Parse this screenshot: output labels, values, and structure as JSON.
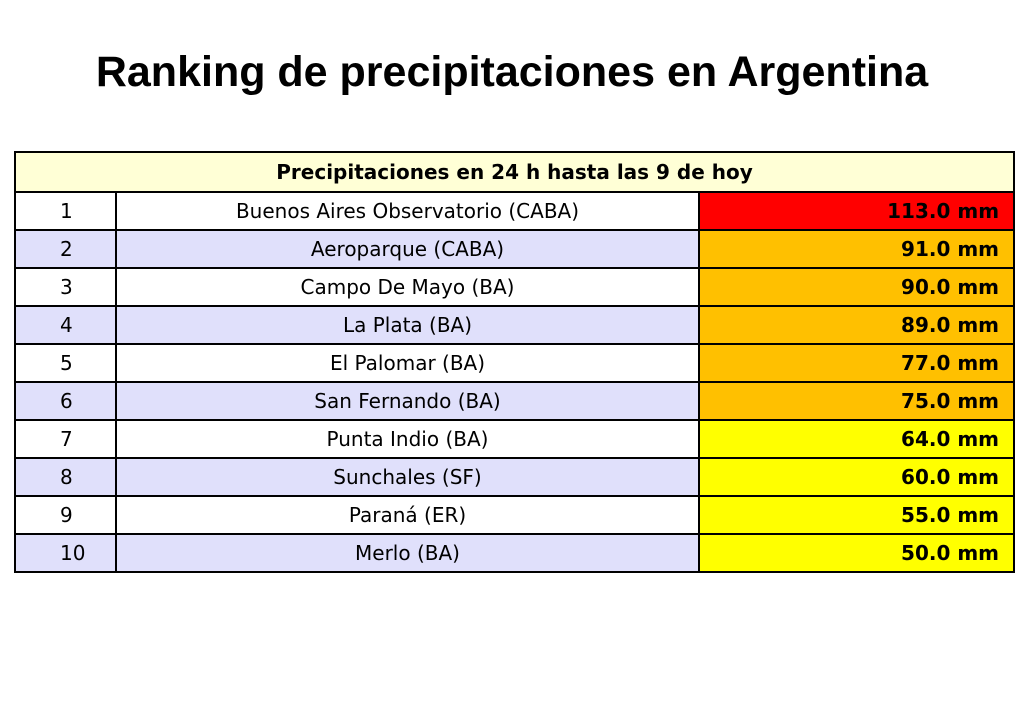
{
  "page": {
    "title": "Ranking de precipitaciones en Argentina"
  },
  "table": {
    "header": "Precipitaciones en 24 h hasta las 9 de hoy",
    "colors": {
      "red": "#ff0000",
      "orange": "#ffc000",
      "yellow": "#ffff00",
      "header_bg": "#ffffd6",
      "alt_row_bg": "#e0e0fb"
    },
    "rows": [
      {
        "rank": "1",
        "station": "Buenos Aires Observatorio (CABA)",
        "value": "113.0 mm",
        "level": "red"
      },
      {
        "rank": "2",
        "station": "Aeroparque (CABA)",
        "value": "91.0 mm",
        "level": "orange"
      },
      {
        "rank": "3",
        "station": "Campo De Mayo (BA)",
        "value": "90.0 mm",
        "level": "orange"
      },
      {
        "rank": "4",
        "station": "La Plata (BA)",
        "value": "89.0 mm",
        "level": "orange"
      },
      {
        "rank": "5",
        "station": "El Palomar (BA)",
        "value": "77.0 mm",
        "level": "orange"
      },
      {
        "rank": "6",
        "station": "San Fernando (BA)",
        "value": "75.0 mm",
        "level": "orange"
      },
      {
        "rank": "7",
        "station": "Punta Indio (BA)",
        "value": "64.0 mm",
        "level": "yellow"
      },
      {
        "rank": "8",
        "station": "Sunchales (SF)",
        "value": "60.0 mm",
        "level": "yellow"
      },
      {
        "rank": "9",
        "station": "Paraná (ER)",
        "value": "55.0 mm",
        "level": "yellow"
      },
      {
        "rank": "10",
        "station": "Merlo (BA)",
        "value": "50.0 mm",
        "level": "yellow"
      }
    ]
  }
}
